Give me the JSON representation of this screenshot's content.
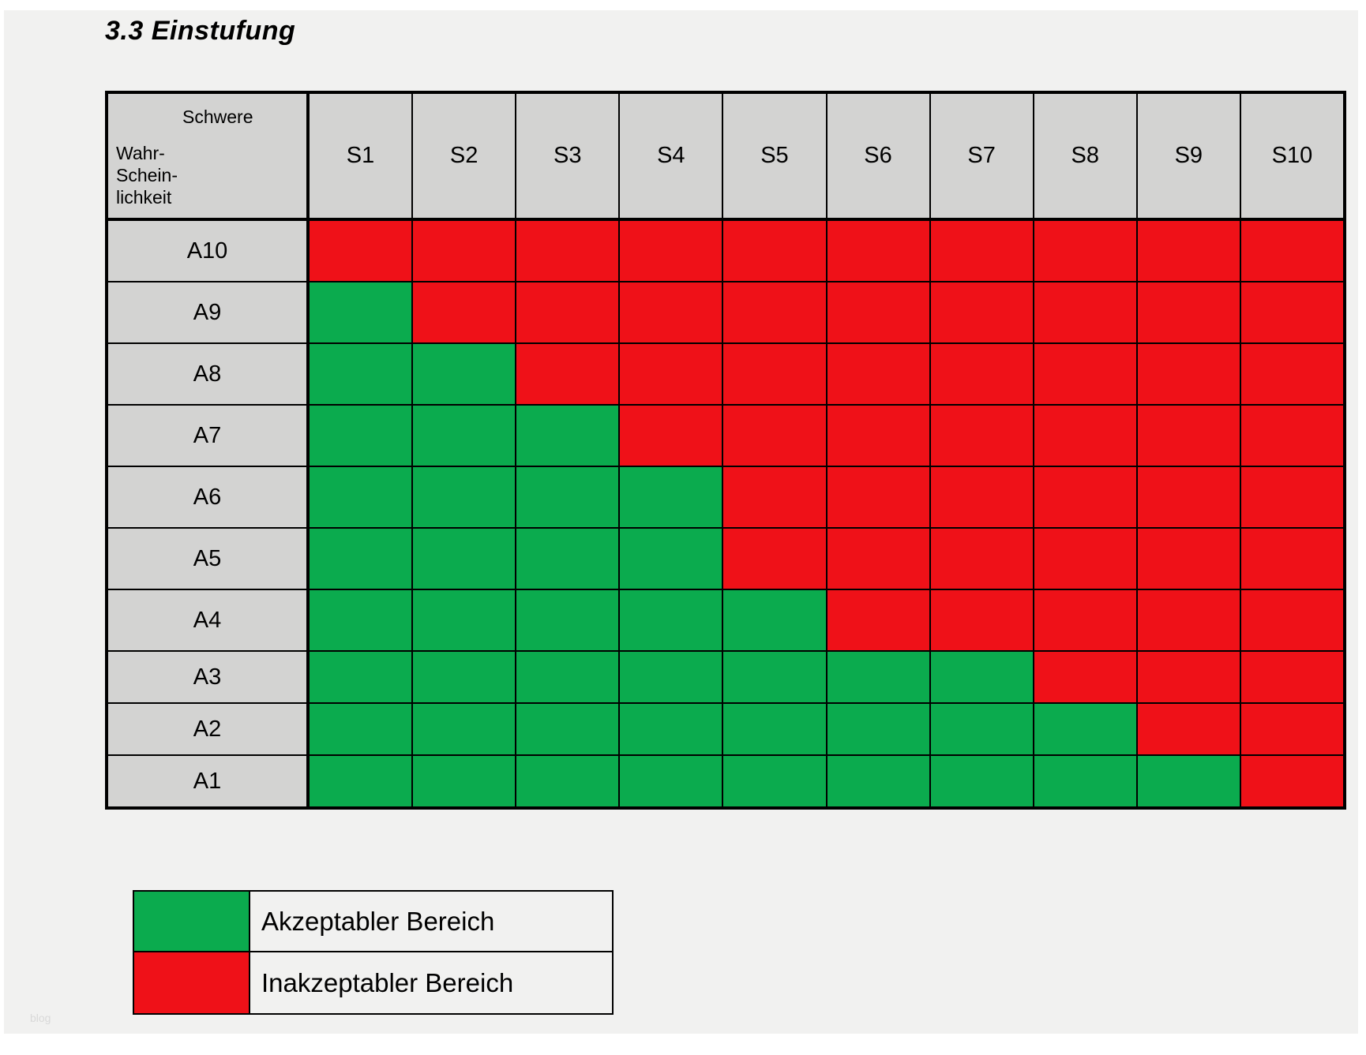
{
  "page": {
    "title": "3.3 Einstufung",
    "watermark": "blog"
  },
  "matrix": {
    "corner": {
      "col_axis": "Schwere",
      "row_axis_lines": [
        "Wahr-",
        "Schein-",
        "lichkeit"
      ]
    },
    "columns": [
      "S1",
      "S2",
      "S3",
      "S4",
      "S5",
      "S6",
      "S7",
      "S8",
      "S9",
      "S10"
    ],
    "rows": [
      {
        "label": "A10",
        "cells": [
          "red",
          "red",
          "red",
          "red",
          "red",
          "red",
          "red",
          "red",
          "red",
          "red"
        ]
      },
      {
        "label": "A9",
        "cells": [
          "green",
          "red",
          "red",
          "red",
          "red",
          "red",
          "red",
          "red",
          "red",
          "red"
        ]
      },
      {
        "label": "A8",
        "cells": [
          "green",
          "green",
          "red",
          "red",
          "red",
          "red",
          "red",
          "red",
          "red",
          "red"
        ]
      },
      {
        "label": "A7",
        "cells": [
          "green",
          "green",
          "green",
          "red",
          "red",
          "red",
          "red",
          "red",
          "red",
          "red"
        ]
      },
      {
        "label": "A6",
        "cells": [
          "green",
          "green",
          "green",
          "green",
          "red",
          "red",
          "red",
          "red",
          "red",
          "red"
        ]
      },
      {
        "label": "A5",
        "cells": [
          "green",
          "green",
          "green",
          "green",
          "red",
          "red",
          "red",
          "red",
          "red",
          "red"
        ]
      },
      {
        "label": "A4",
        "cells": [
          "green",
          "green",
          "green",
          "green",
          "green",
          "red",
          "red",
          "red",
          "red",
          "red"
        ]
      },
      {
        "label": "A3",
        "cells": [
          "green",
          "green",
          "green",
          "green",
          "green",
          "green",
          "green",
          "red",
          "red",
          "red"
        ]
      },
      {
        "label": "A2",
        "cells": [
          "green",
          "green",
          "green",
          "green",
          "green",
          "green",
          "green",
          "green",
          "red",
          "red"
        ]
      },
      {
        "label": "A1",
        "cells": [
          "green",
          "green",
          "green",
          "green",
          "green",
          "green",
          "green",
          "green",
          "green",
          "red"
        ]
      }
    ]
  },
  "legend": [
    {
      "color": "green",
      "label": "Akzeptabler Bereich"
    },
    {
      "color": "red",
      "label": "Inakzeptabler Bereich"
    }
  ],
  "colors": {
    "green": "#0BAB4E",
    "red": "#EF1118",
    "header_bg": "#D3D3D2",
    "page_bg": "#F1F1F0"
  },
  "chart_data": {
    "type": "heatmap",
    "title": "3.3 Einstufung",
    "x_categories": [
      "S1",
      "S2",
      "S3",
      "S4",
      "S5",
      "S6",
      "S7",
      "S8",
      "S9",
      "S10"
    ],
    "y_categories": [
      "A10",
      "A9",
      "A8",
      "A7",
      "A6",
      "A5",
      "A4",
      "A3",
      "A2",
      "A1"
    ],
    "values": [
      [
        "red",
        "red",
        "red",
        "red",
        "red",
        "red",
        "red",
        "red",
        "red",
        "red"
      ],
      [
        "green",
        "red",
        "red",
        "red",
        "red",
        "red",
        "red",
        "red",
        "red",
        "red"
      ],
      [
        "green",
        "green",
        "red",
        "red",
        "red",
        "red",
        "red",
        "red",
        "red",
        "red"
      ],
      [
        "green",
        "green",
        "green",
        "red",
        "red",
        "red",
        "red",
        "red",
        "red",
        "red"
      ],
      [
        "green",
        "green",
        "green",
        "green",
        "red",
        "red",
        "red",
        "red",
        "red",
        "red"
      ],
      [
        "green",
        "green",
        "green",
        "green",
        "red",
        "red",
        "red",
        "red",
        "red",
        "red"
      ],
      [
        "green",
        "green",
        "green",
        "green",
        "green",
        "red",
        "red",
        "red",
        "red",
        "red"
      ],
      [
        "green",
        "green",
        "green",
        "green",
        "green",
        "green",
        "green",
        "red",
        "red",
        "red"
      ],
      [
        "green",
        "green",
        "green",
        "green",
        "green",
        "green",
        "green",
        "green",
        "red",
        "red"
      ],
      [
        "green",
        "green",
        "green",
        "green",
        "green",
        "green",
        "green",
        "green",
        "green",
        "red"
      ]
    ],
    "legend_entries": [
      "Akzeptabler Bereich",
      "Inakzeptabler Bereich"
    ],
    "legend_position": "bottom-left",
    "grid": true
  }
}
